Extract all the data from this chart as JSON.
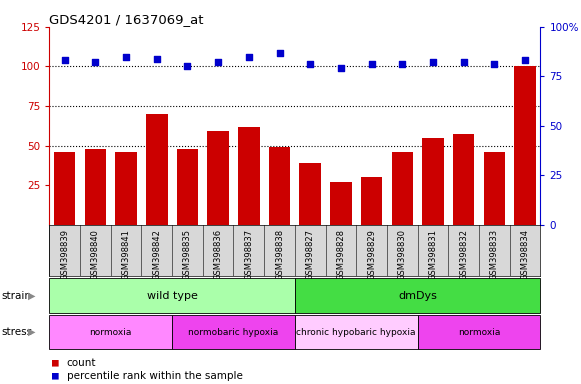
{
  "title": "GDS4201 / 1637069_at",
  "samples": [
    "GSM398839",
    "GSM398840",
    "GSM398841",
    "GSM398842",
    "GSM398835",
    "GSM398836",
    "GSM398837",
    "GSM398838",
    "GSM398827",
    "GSM398828",
    "GSM398829",
    "GSM398830",
    "GSM398831",
    "GSM398832",
    "GSM398833",
    "GSM398834"
  ],
  "counts": [
    46,
    48,
    46,
    70,
    48,
    59,
    62,
    49,
    39,
    27,
    30,
    46,
    55,
    57,
    46,
    100
  ],
  "percentile_ranks": [
    83,
    82,
    85,
    84,
    80,
    82,
    85,
    87,
    81,
    79,
    81,
    81,
    82,
    82,
    81,
    83
  ],
  "bar_color": "#cc0000",
  "dot_color": "#0000cc",
  "left_ylim": [
    0,
    125
  ],
  "left_yticks": [
    25,
    50,
    75,
    100,
    125
  ],
  "right_ylim": [
    0,
    100
  ],
  "right_yticks": [
    0,
    25,
    50,
    75,
    100
  ],
  "hlines": [
    50,
    75,
    100
  ],
  "strain_groups": [
    {
      "label": "wild type",
      "start": 0,
      "end": 8,
      "color": "#aaffaa"
    },
    {
      "label": "dmDys",
      "start": 8,
      "end": 16,
      "color": "#44dd44"
    }
  ],
  "stress_groups": [
    {
      "label": "normoxia",
      "start": 0,
      "end": 4,
      "color": "#ff88ff"
    },
    {
      "label": "normobaric hypoxia",
      "start": 4,
      "end": 8,
      "color": "#ee44ee"
    },
    {
      "label": "chronic hypobaric hypoxia",
      "start": 8,
      "end": 12,
      "color": "#ffccff"
    },
    {
      "label": "normoxia",
      "start": 12,
      "end": 16,
      "color": "#ee44ee"
    }
  ],
  "legend_count_label": "count",
  "legend_pct_label": "percentile rank within the sample"
}
